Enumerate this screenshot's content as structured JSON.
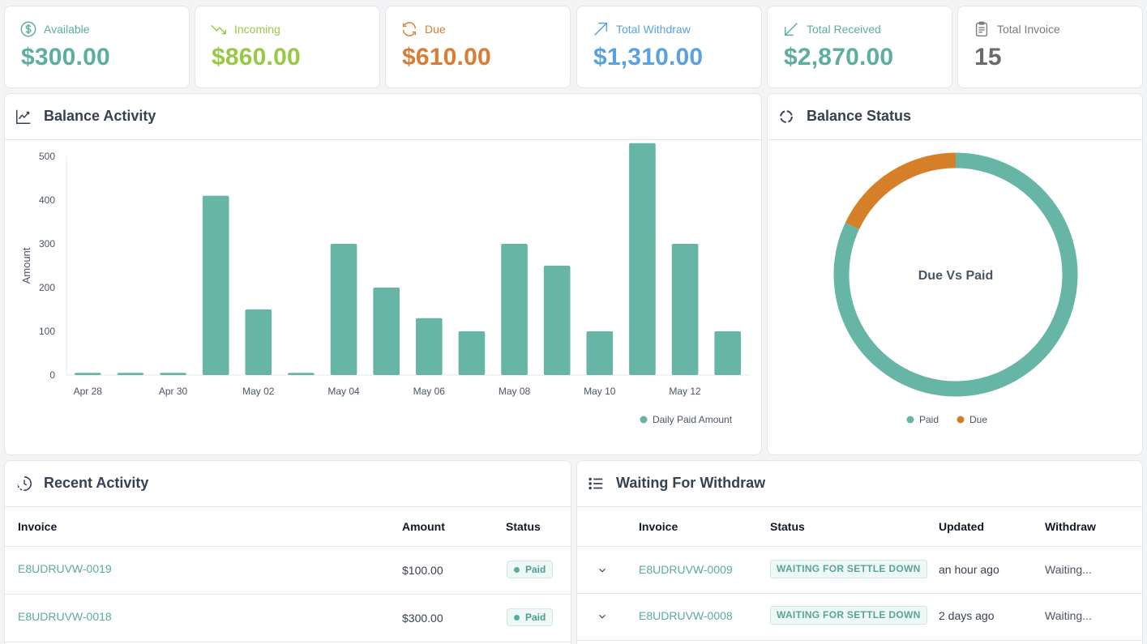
{
  "stats": [
    {
      "label": "Available",
      "value": "$300.00",
      "icon": "dollar-circle-icon",
      "color": "#5cae9f"
    },
    {
      "label": "Incoming",
      "value": "$860.00",
      "icon": "trend-down-icon",
      "color": "#98c945"
    },
    {
      "label": "Due",
      "value": "$610.00",
      "icon": "refresh-icon",
      "color": "#db7c33"
    },
    {
      "label": "Total Withdraw",
      "value": "$1,310.00",
      "icon": "arrow-up-right-icon",
      "color": "#5aa2df"
    },
    {
      "label": "Total Received",
      "value": "$2,870.00",
      "icon": "arrow-down-left-icon",
      "color": "#5cae9f"
    },
    {
      "label": "Total Invoice",
      "value": "15",
      "icon": "clipboard-icon",
      "color": "#6b6b6b"
    }
  ],
  "balance_activity": {
    "title": "Balance Activity",
    "icon": "line-chart-icon"
  },
  "balance_status": {
    "title": "Balance Status",
    "icon": "donut-icon"
  },
  "recent_activity": {
    "title": "Recent Activity",
    "icon": "clock-icon",
    "columns": [
      "Invoice",
      "Amount",
      "Status"
    ],
    "rows": [
      {
        "invoice": "E8UDRUVW-0019",
        "amount": "$100.00",
        "status": "Paid"
      },
      {
        "invoice": "E8UDRUVW-0018",
        "amount": "$300.00",
        "status": "Paid"
      }
    ]
  },
  "waiting_withdraw": {
    "title": "Waiting For Withdraw",
    "icon": "list-icon",
    "columns": [
      "Invoice",
      "Status",
      "Updated",
      "Withdraw"
    ],
    "rows": [
      {
        "invoice": "E8UDRUVW-0009",
        "status": "WAITING FOR SETTLE DOWN",
        "updated": "an hour ago",
        "withdraw": "Waiting..."
      },
      {
        "invoice": "E8UDRUVW-0008",
        "status": "WAITING FOR SETTLE DOWN",
        "updated": "2 days ago",
        "withdraw": "Waiting..."
      }
    ]
  },
  "chart_data": [
    {
      "type": "bar",
      "ylabel": "Amount",
      "xlabel": "",
      "ylim": [
        0,
        500
      ],
      "yticks": [
        0,
        100,
        200,
        300,
        400,
        500
      ],
      "categories": [
        "Apr 28",
        "Apr 29",
        "Apr 30",
        "May 01",
        "May 02",
        "May 03",
        "May 04",
        "May 05",
        "May 06",
        "May 07",
        "May 08",
        "May 09",
        "May 10",
        "May 11",
        "May 12",
        "May 13"
      ],
      "xtick_labels": [
        "Apr 28",
        "Apr 30",
        "May 02",
        "May 04",
        "May 06",
        "May 08",
        "May 10",
        "May 12"
      ],
      "series": [
        {
          "name": "Daily Paid Amount",
          "color": "#66b5a6",
          "values": [
            5,
            5,
            5,
            410,
            150,
            5,
            300,
            200,
            130,
            100,
            300,
            250,
            100,
            530,
            300,
            100
          ]
        }
      ],
      "legend": "bottom-right"
    },
    {
      "type": "pie",
      "title": "Due Vs Paid",
      "labels": [
        "Paid",
        "Due"
      ],
      "values": [
        82,
        18
      ],
      "colors": [
        "#66b5a6",
        "#d58029"
      ],
      "donut": true,
      "legend": "bottom"
    }
  ]
}
